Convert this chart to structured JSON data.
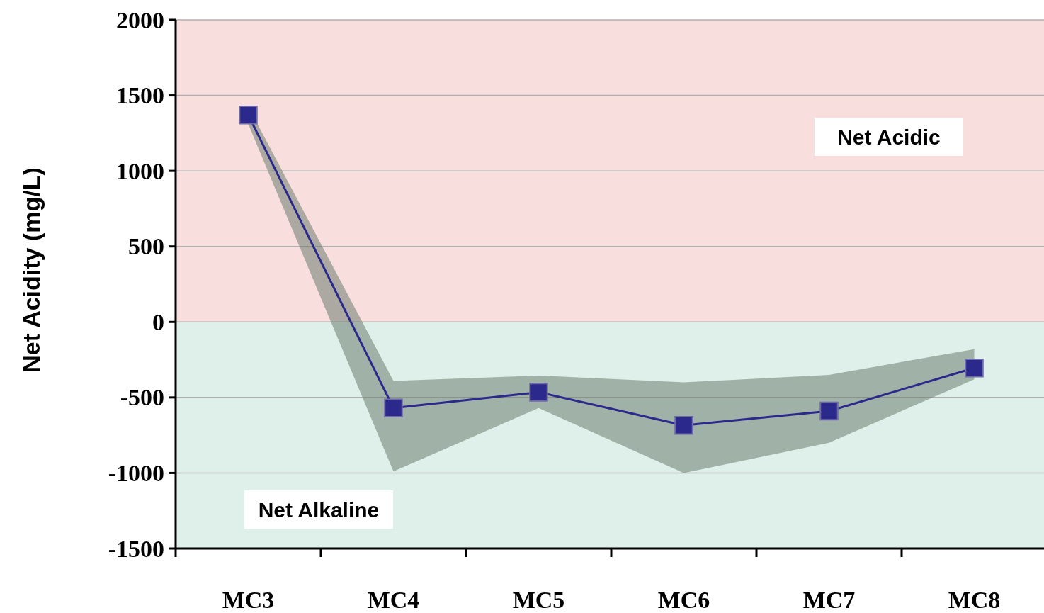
{
  "chart_data": {
    "type": "line",
    "ylabel": "Net Acidity (mg/L)",
    "categories": [
      "MC3",
      "MC4",
      "MC5",
      "MC6",
      "MC7",
      "MC8"
    ],
    "series": [
      {
        "color": "#2b2a8c",
        "values": [
          1370,
          -570,
          -465,
          -685,
          -590,
          -305
        ],
        "lower": [
          1310,
          -990,
          -570,
          -1000,
          -800,
          -380
        ],
        "upper": [
          1425,
          -390,
          -355,
          -400,
          -350,
          -180
        ]
      }
    ],
    "ylim": [
      -1500,
      2000
    ],
    "yticks": [
      -1500,
      -1000,
      -500,
      0,
      500,
      1000,
      1500,
      2000
    ],
    "grid": "y",
    "marker": "square",
    "line_style": "solid",
    "bands": [
      {
        "axis": "y",
        "from": 0,
        "to": 2000,
        "label": "Net Acidic",
        "color": "#f9dede"
      },
      {
        "axis": "y",
        "from": -1500,
        "to": 0,
        "label": "Net Alkaline",
        "color": "#dff0ea"
      }
    ]
  }
}
